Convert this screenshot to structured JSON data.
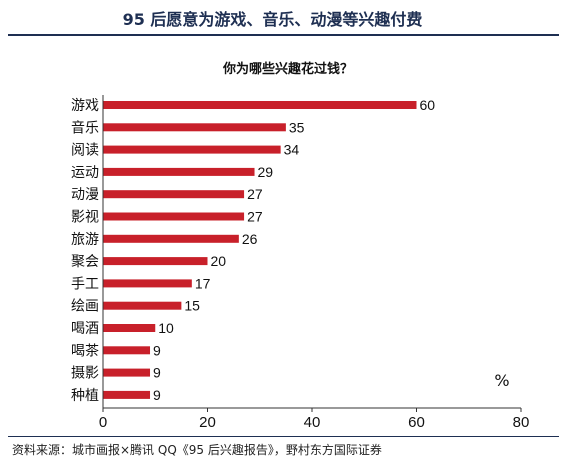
{
  "header": {
    "title": "95 后愿意为游戏、音乐、动漫等兴趣付费"
  },
  "chart_data": {
    "type": "bar",
    "orientation": "horizontal",
    "title": "你为哪些兴趣花过钱？",
    "unit": "%",
    "categories": [
      "游戏",
      "音乐",
      "阅读",
      "运动",
      "动漫",
      "影视",
      "旅游",
      "聚会",
      "手工",
      "绘画",
      "喝酒",
      "喝茶",
      "摄影",
      "种植"
    ],
    "values": [
      60,
      35,
      34,
      29,
      27,
      27,
      26,
      20,
      17,
      15,
      10,
      9,
      9,
      9
    ],
    "xlim": [
      0,
      80
    ],
    "xticks": [
      0,
      20,
      40,
      60,
      80
    ],
    "grid": false,
    "bar_color": "#c8202a"
  },
  "footer": {
    "source": "资料来源：城市画报×腾讯 QQ《95 后兴趣报告》，野村东方国际证券"
  }
}
